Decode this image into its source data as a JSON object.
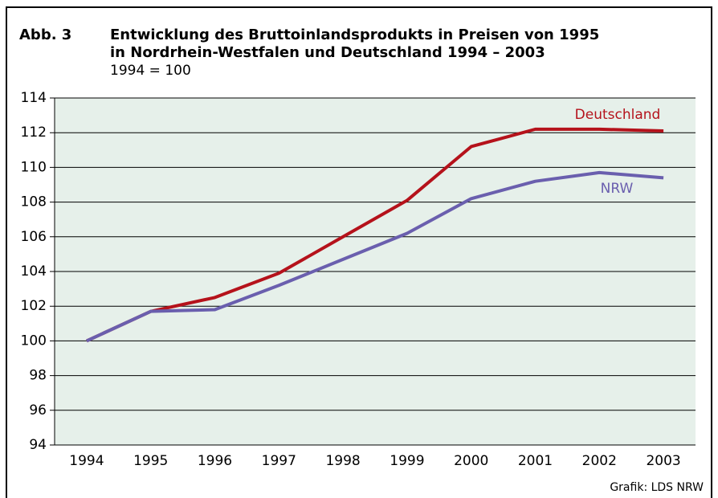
{
  "chart_data": {
    "type": "line",
    "figure_label": "Abb. 3",
    "title_lines": [
      "Entwicklung des Bruttoinlandsprodukts in Preisen von 1995",
      "in Nordrhein-Westfalen und Deutschland 1994 – 2003"
    ],
    "subtitle": "1994 = 100",
    "source": "Grafik: LDS NRW",
    "categories": [
      "1994",
      "1995",
      "1996",
      "1997",
      "1998",
      "1999",
      "2000",
      "2001",
      "2002",
      "2003"
    ],
    "series": [
      {
        "name": "Deutschland",
        "color": "#b5121b",
        "values": [
          100,
          101.7,
          102.5,
          103.9,
          106.0,
          108.1,
          111.2,
          112.2,
          112.2,
          112.1
        ]
      },
      {
        "name": "NRW",
        "color": "#6a5fae",
        "values": [
          100,
          101.7,
          101.8,
          103.2,
          104.7,
          106.2,
          108.2,
          109.2,
          109.7,
          109.4
        ]
      }
    ],
    "ylim": [
      94,
      114
    ],
    "yticks": [
      94,
      96,
      98,
      100,
      102,
      104,
      106,
      108,
      110,
      112,
      114
    ],
    "grid": true,
    "plot_background": "#e6f0ea"
  }
}
